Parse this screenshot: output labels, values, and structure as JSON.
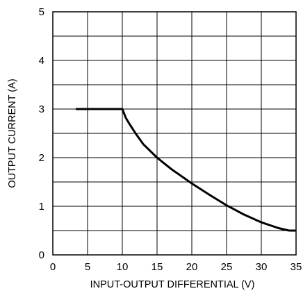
{
  "chart_data": {
    "type": "line",
    "title": "",
    "xlabel": "INPUT-OUTPUT DIFFERENTIAL (V)",
    "ylabel": "OUTPUT CURRENT (A)",
    "xlim": [
      0,
      35
    ],
    "ylim": [
      0,
      5
    ],
    "x_ticks": [
      0,
      5,
      10,
      15,
      20,
      25,
      30,
      35
    ],
    "y_ticks": [
      0,
      1,
      2,
      3,
      4,
      5
    ],
    "x_tick_labels": [
      "0",
      "5",
      "10",
      "15",
      "20",
      "25",
      "30",
      "35"
    ],
    "y_tick_labels": [
      "0",
      "1",
      "2",
      "3",
      "4",
      "5"
    ],
    "x_minor_step": 5,
    "y_minor_step": 0.5,
    "grid": true,
    "legend": "none",
    "series": [
      {
        "color": "#000000",
        "x": [
          3.3,
          10,
          10.5,
          11,
          12,
          13,
          15,
          17,
          20,
          22.5,
          25,
          27.5,
          30,
          32.5,
          34,
          35
        ],
        "y": [
          3.0,
          3.0,
          2.82,
          2.7,
          2.48,
          2.28,
          2.0,
          1.77,
          1.47,
          1.24,
          1.02,
          0.83,
          0.67,
          0.55,
          0.5,
          0.5
        ]
      }
    ]
  }
}
